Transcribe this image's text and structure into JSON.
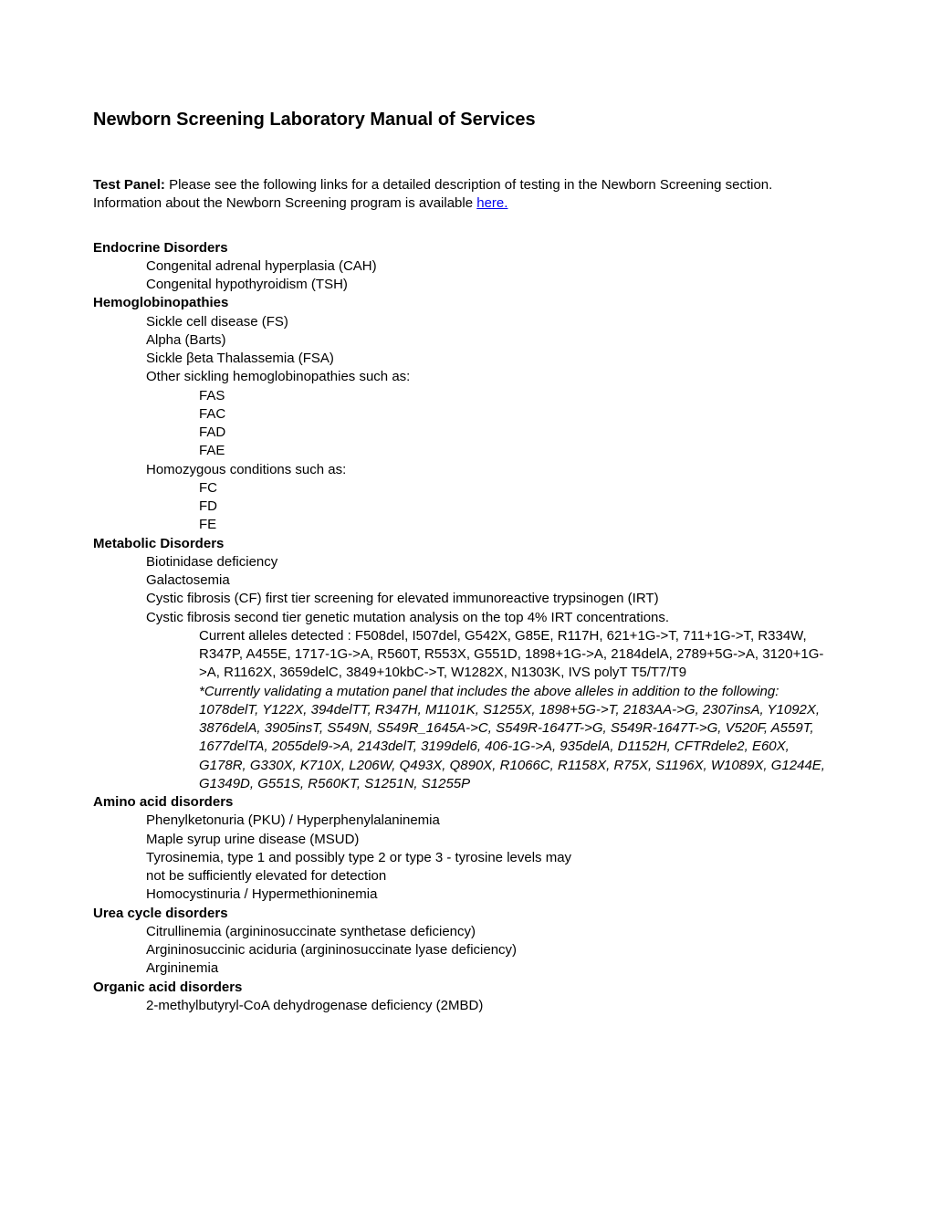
{
  "title": "Newborn Screening Laboratory Manual of Services",
  "intro": {
    "label": "Test Panel:",
    "text1": " Please see the following links for a detailed description of testing in the Newborn Screening section. Information about the Newborn Screening program is available ",
    "link": "here."
  },
  "sections": {
    "endocrine": {
      "head": "Endocrine Disorders",
      "items": [
        "Congenital adrenal hyperplasia (CAH)",
        "Congenital hypothyroidism (TSH)"
      ]
    },
    "hemo": {
      "head": "Hemoglobinopathies",
      "items1": [
        "Sickle cell disease (FS)",
        "Alpha (Barts)",
        "Sickle βeta Thalassemia (FSA)",
        "Other sickling hemoglobinopathies such as:"
      ],
      "sub1": [
        "FAS",
        "FAC",
        "FAD",
        "FAE"
      ],
      "items2": [
        "Homozygous conditions such as:"
      ],
      "sub2": [
        "FC",
        "FD",
        "FE"
      ]
    },
    "metabolic": {
      "head": "Metabolic Disorders",
      "items": [
        "Biotinidase deficiency",
        "Galactosemia",
        "Cystic fibrosis (CF) first tier screening for elevated immunoreactive trypsinogen (IRT)",
        "Cystic fibrosis second tier genetic mutation analysis on the top 4% IRT concentrations."
      ],
      "alleles": [
        "Current alleles detected : F508del, I507del, G542X, G85E, R117H, 621+1G->T, 711+1G->T, R334W, R347P, A455E, 1717-1G->A, R560T, R553X, G551D, 1898+1G->A, 2184delA, 2789+5G->A, 3120+1G->A, R1162X, 3659delC, 3849+10kbC->T, W1282X, N1303K, IVS polyT T5/T7/T9"
      ],
      "validating": [
        "*Currently validating a mutation panel that includes the above alleles in addition to the following: 1078delT, Y122X, 394delTT, R347H, M1101K, S1255X, 1898+5G->T, 2183AA->G, 2307insA, Y1092X, 3876delA, 3905insT, S549N, S549R_1645A->C, S549R-1647T->G, S549R-1647T->G, V520F, A559T, 1677delTA, 2055del9->A, 2143delT, 3199del6, 406-1G->A, 935delA, D1152H, CFTRdele2, E60X, G178R, G330X, K710X, L206W, Q493X, Q890X, R1066C, R1158X, R75X, S1196X, W1089X, G1244E, G1349D, G551S, R560KT, S1251N, S1255P"
      ]
    },
    "amino": {
      "head": "Amino acid disorders",
      "items": [
        "Phenylketonuria (PKU) / Hyperphenylalaninemia",
        "Maple syrup urine disease (MSUD)",
        "Tyrosinemia, type 1 and possibly type 2 or type 3 - tyrosine levels may",
        "not be sufficiently elevated for detection",
        "Homocystinuria / Hypermethioninemia"
      ]
    },
    "urea": {
      "head": "Urea cycle disorders",
      "items": [
        "Citrullinemia (argininosuccinate synthetase deficiency)",
        "Argininosuccinic aciduria (argininosuccinate lyase deficiency)",
        "Argininemia"
      ]
    },
    "organic": {
      "head": "Organic acid disorders",
      "items": [
        "2-methylbutyryl-CoA dehydrogenase deficiency (2MBD)"
      ]
    }
  }
}
